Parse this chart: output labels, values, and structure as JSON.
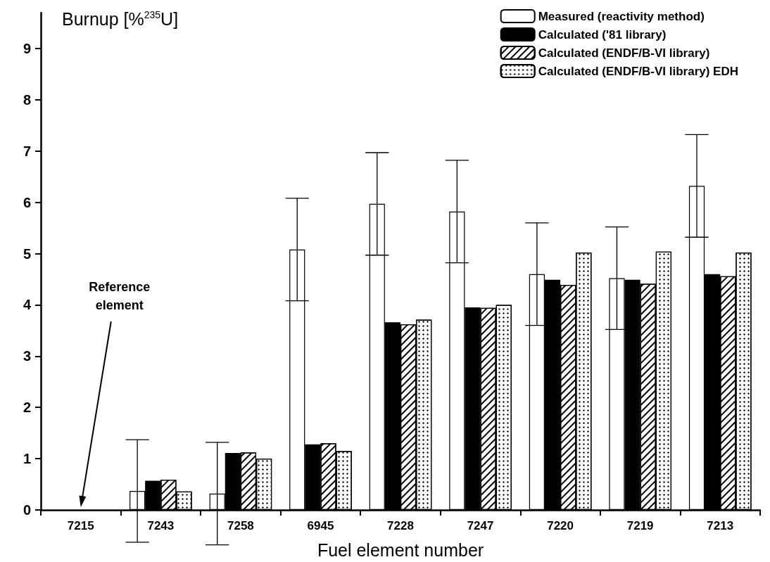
{
  "chart_data": {
    "type": "bar",
    "ylabel": "Burnup [%$^{235}$U]",
    "xlabel": "Fuel element number",
    "categories": [
      "7215",
      "7243",
      "7258",
      "6945",
      "7228",
      "7247",
      "7220",
      "7219",
      "7213"
    ],
    "series": [
      {
        "name": "Measured (reactivity method)",
        "color": "#ffffff",
        "values": [
          null,
          0.37,
          0.32,
          5.08,
          5.97,
          5.82,
          4.6,
          4.52,
          6.32
        ],
        "errors": [
          null,
          1.0,
          1.0,
          1.0,
          1.0,
          1.0,
          1.0,
          1.0,
          1.0
        ]
      },
      {
        "name": "Calculated ('81 library)",
        "color": "#000000",
        "values": [
          null,
          0.57,
          1.11,
          1.28,
          3.66,
          3.95,
          4.49,
          4.49,
          4.6
        ]
      },
      {
        "name": "Calculated (ENDF/B-VI library)",
        "color": "#ffffff",
        "values": [
          null,
          0.59,
          1.12,
          1.3,
          3.62,
          3.94,
          4.39,
          4.41,
          4.56
        ]
      },
      {
        "name": "Calculated (ENDF/B-VI library) EDH",
        "color": "#ffffff",
        "values": [
          null,
          0.36,
          1.0,
          1.15,
          3.71,
          4.0,
          5.02,
          5.04,
          5.02
        ]
      }
    ],
    "ylim": [
      0,
      9.7
    ],
    "yticks": [
      0,
      1,
      2,
      3,
      4,
      5,
      6,
      7,
      8,
      9
    ],
    "grid": false,
    "legend": "top right",
    "annotations": [
      "Reference element"
    ]
  }
}
